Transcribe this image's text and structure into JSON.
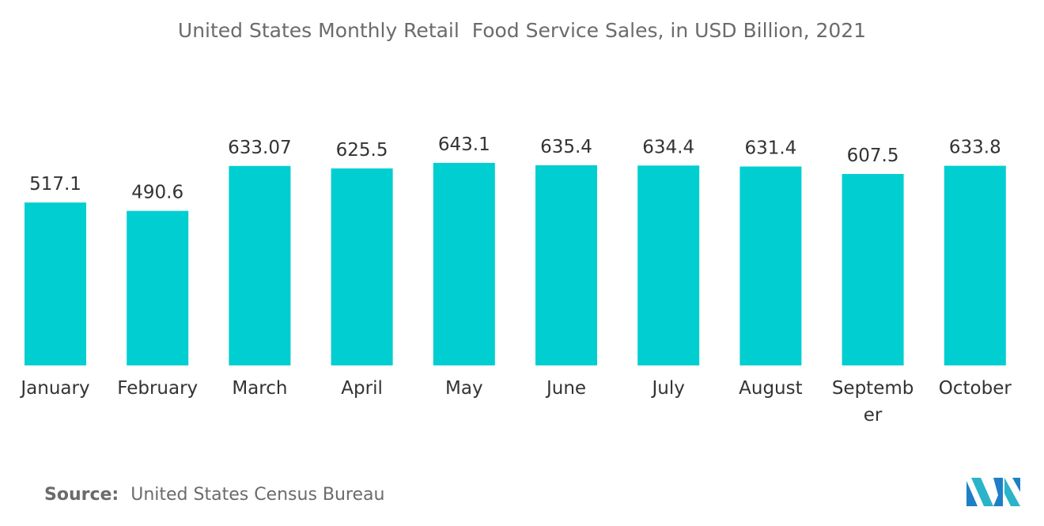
{
  "chart_data": {
    "type": "bar",
    "title": "United States Monthly Retail  Food Service Sales, in USD Billion, 2021",
    "categories": [
      "January",
      "February",
      "March",
      "April",
      "May",
      "June",
      "July",
      "August",
      "September",
      "October"
    ],
    "values": [
      517.1,
      490.6,
      633.07,
      625.5,
      643.1,
      635.4,
      634.4,
      631.4,
      607.5,
      633.8
    ],
    "value_labels": [
      "517.1",
      "490.6",
      "633.07",
      "625.5",
      "643.1",
      "635.4",
      "634.4",
      "631.4",
      "607.5",
      "633.8"
    ],
    "xlabel": "",
    "ylabel": "",
    "ylim": [
      0,
      700
    ],
    "grid": false,
    "legend": "none",
    "bar_color": "#00CED1"
  },
  "source": {
    "label": "Source:",
    "text": "United States Census Bureau"
  },
  "logo": {
    "icon": "mordor-intelligence-logo-icon",
    "colors": [
      "#1F7FC6",
      "#2BB3C9"
    ]
  }
}
